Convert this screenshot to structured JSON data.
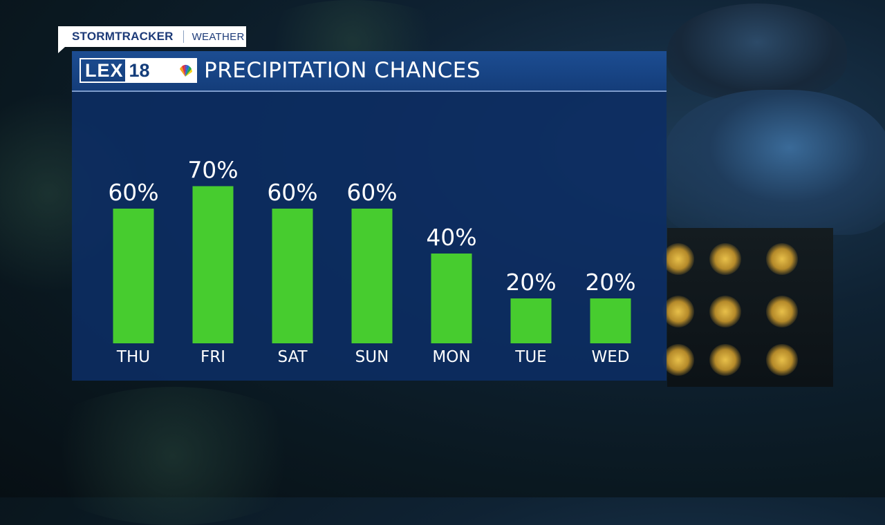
{
  "brand": {
    "name": "StormTracker",
    "section": "WEATHER"
  },
  "logo": {
    "letters": "LEX",
    "number": "18"
  },
  "colors": {
    "panel": "#0d2d64",
    "header": "#1c4d92",
    "bar": "#47cc2f",
    "text": "#ffffff"
  },
  "chart_data": {
    "type": "bar",
    "title": "PRECIPITATION CHANCES",
    "categories": [
      "THU",
      "FRI",
      "SAT",
      "SUN",
      "MON",
      "TUE",
      "WED"
    ],
    "values": [
      60,
      70,
      60,
      60,
      40,
      20,
      20
    ],
    "value_labels": [
      "60%",
      "70%",
      "60%",
      "60%",
      "40%",
      "20%",
      "20%"
    ],
    "unit": "%",
    "xlabel": "",
    "ylabel": "",
    "ylim": [
      0,
      100
    ],
    "grid": false,
    "legend": "none"
  }
}
